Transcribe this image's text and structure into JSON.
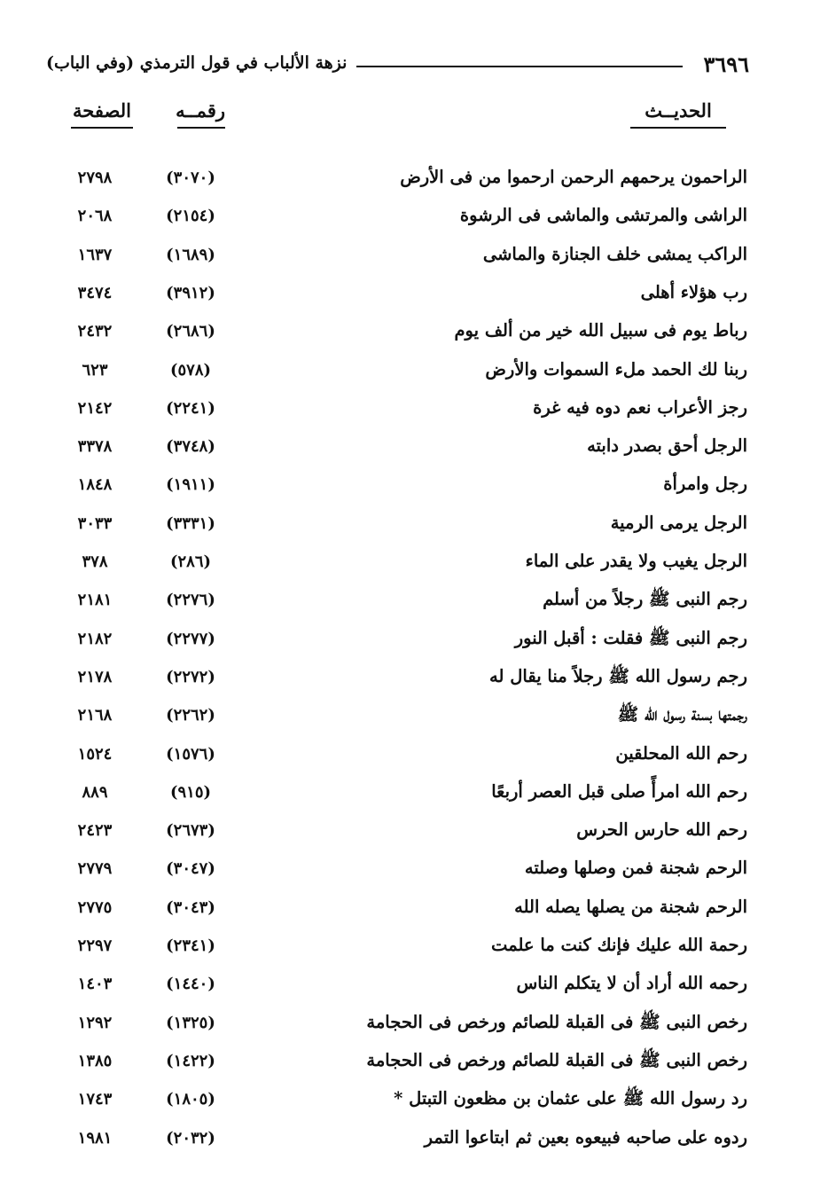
{
  "header": {
    "page_number": "٣٦٩٦",
    "title": "نزهة الألباب في قول الترمذي (وفي الباب)"
  },
  "columns": {
    "hadith": "الحديــث",
    "number": "رقمــه",
    "page": "الصفحة"
  },
  "rows": [
    {
      "text": "الراحمون يرحمهم الرحمن ارحموا من فى الأرض",
      "number": "(٣٠٧٠)",
      "page": "٢٧٩٨"
    },
    {
      "text": "الراشى والمرتشى والماشى فى الرشوة",
      "number": "(٢١٥٤)",
      "page": "٢٠٦٨"
    },
    {
      "text": "الراكب يمشى خلف الجنازة والماشى",
      "number": "(١٦٨٩)",
      "page": "١٦٣٧"
    },
    {
      "text": "رب هؤلاء أهلى",
      "number": "(٣٩١٢)",
      "page": "٣٤٧٤"
    },
    {
      "text": "رباط يوم فى سبيل الله خير من ألف يوم",
      "number": "(٢٦٨٦)",
      "page": "٢٤٣٢"
    },
    {
      "text": "ربنا لك الحمد ملء السموات والأرض",
      "number": "(٥٧٨)",
      "page": "٦٢٣"
    },
    {
      "text": "رجز الأعراب نعم دوه فيه غرة",
      "number": "(٢٢٤١)",
      "page": "٢١٤٢"
    },
    {
      "text": "الرجل أحق بصدر دابته",
      "number": "(٣٧٤٨)",
      "page": "٣٣٧٨"
    },
    {
      "text": "رجل وامرأة",
      "number": "(١٩١١)",
      "page": "١٨٤٨"
    },
    {
      "text": "الرجل يرمى الرمية",
      "number": "(٣٣٣١)",
      "page": "٣٠٣٣"
    },
    {
      "text": "الرجل يغيب ولا يقدر على الماء",
      "number": "(٢٨٦)",
      "page": "٣٧٨"
    },
    {
      "text": "رجم النبى ﷺ رجلاً من أسلم",
      "number": "(٢٢٧٦)",
      "page": "٢١٨١"
    },
    {
      "text": "رجم النبى ﷺ فقلت : أقبل النور",
      "number": "(٢٢٧٧)",
      "page": "٢١٨٢"
    },
    {
      "text": "رجم رسول الله ﷺ رجلاً منا يقال له",
      "number": "(٢٢٧٢)",
      "page": "٢١٧٨"
    },
    {
      "text": "رجمتها بسنة رسول الله ﷺ",
      "number": "(٢٢٦٢)",
      "page": "٢١٦٨"
    },
    {
      "text": "رحم الله المحلقين",
      "number": "(١٥٧٦)",
      "page": "١٥٢٤"
    },
    {
      "text": "رحم الله امرأً صلى قبل العصر أربعًا",
      "number": "(٩١٥)",
      "page": "٨٨٩"
    },
    {
      "text": "رحم الله حارس الحرس",
      "number": "(٢٦٧٣)",
      "page": "٢٤٢٣"
    },
    {
      "text": "الرحم شجنة فمن وصلها وصلته",
      "number": "(٣٠٤٧)",
      "page": "٢٧٧٩"
    },
    {
      "text": "الرحم شجنة من يصلها يصله الله",
      "number": "(٣٠٤٣)",
      "page": "٢٧٧٥"
    },
    {
      "text": "رحمة الله عليك فإنك كنت ما علمت",
      "number": "(٢٣٤١)",
      "page": "٢٢٩٧"
    },
    {
      "text": "رحمه الله أراد أن لا يتكلم الناس",
      "number": "(١٤٤٠)",
      "page": "١٤٠٣"
    },
    {
      "text": "رخص النبى ﷺ فى القبلة للصائم ورخص فى الحجامة",
      "number": "(١٣٢٥)",
      "page": "١٢٩٢"
    },
    {
      "text": "رخص النبى ﷺ فى القبلة للصائم ورخص فى الحجامة",
      "number": "(١٤٢٢)",
      "page": "١٣٨٥"
    },
    {
      "text": "رد رسول الله ﷺ على عثمان بن مظعون التبتل *",
      "number": "(١٨٠٥)",
      "page": "١٧٤٣"
    },
    {
      "text": "ردوه على صاحبه فبيعوه بعين ثم ابتاعوا التمر",
      "number": "(٢٠٣٢)",
      "page": "١٩٨١"
    }
  ]
}
